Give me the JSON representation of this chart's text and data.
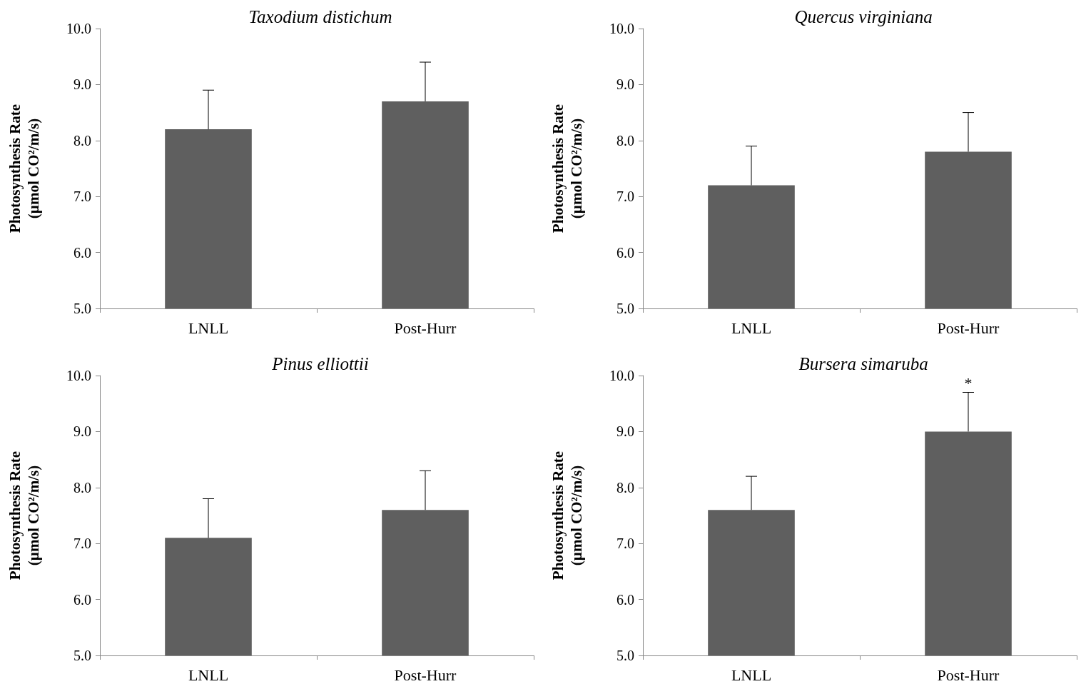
{
  "chart_data": [
    {
      "type": "bar",
      "title": "Taxodium distichum",
      "ylabel": "Photosynthesis Rate\n(µmol CO²/m/s)",
      "categories": [
        "LNLL",
        "Post-Hurr"
      ],
      "values": [
        8.2,
        8.7
      ],
      "errors": [
        [
          8.2,
          8.9
        ],
        [
          8.7,
          9.4
        ]
      ],
      "color": "#5f5f5f",
      "ylim": [
        5,
        10
      ],
      "yticks": [
        {
          "value": 5,
          "label": "5.0"
        },
        {
          "value": 6,
          "label": "6.0"
        },
        {
          "value": 7,
          "label": "7.0"
        },
        {
          "value": 8,
          "label": "8.0"
        },
        {
          "value": 9,
          "label": "9.0"
        },
        {
          "value": 10,
          "label": "10.0"
        }
      ],
      "grid": false
    },
    {
      "type": "bar",
      "title": "Quercus virginiana",
      "ylabel": "Photosynthesis Rate\n(µmol CO²/m/s)",
      "categories": [
        "LNLL",
        "Post-Hurr"
      ],
      "values": [
        7.2,
        7.8
      ],
      "errors": [
        [
          7.2,
          7.9
        ],
        [
          7.8,
          8.5
        ]
      ],
      "color": "#5f5f5f",
      "ylim": [
        5,
        10
      ],
      "yticks": [
        {
          "value": 5,
          "label": "5.0"
        },
        {
          "value": 6,
          "label": "6.0"
        },
        {
          "value": 7,
          "label": "7.0"
        },
        {
          "value": 8,
          "label": "8.0"
        },
        {
          "value": 9,
          "label": "9.0"
        },
        {
          "value": 10,
          "label": "10.0"
        }
      ],
      "grid": false
    },
    {
      "type": "bar",
      "title": "Pinus elliottii",
      "ylabel": "Photosynthesis Rate\n(µmol CO²/m/s)",
      "categories": [
        "LNLL",
        "Post-Hurr"
      ],
      "values": [
        7.1,
        7.6
      ],
      "errors": [
        [
          7.1,
          7.8
        ],
        [
          7.6,
          8.3
        ]
      ],
      "color": "#5f5f5f",
      "ylim": [
        5,
        10
      ],
      "yticks": [
        {
          "value": 5,
          "label": "5.0"
        },
        {
          "value": 6,
          "label": "6.0"
        },
        {
          "value": 7,
          "label": "7.0"
        },
        {
          "value": 8,
          "label": "8.0"
        },
        {
          "value": 9,
          "label": "9.0"
        },
        {
          "value": 10,
          "label": "10.0"
        }
      ],
      "grid": false
    },
    {
      "type": "bar",
      "title": "Bursera simaruba",
      "ylabel": "Photosynthesis Rate\n(µmol CO²/m/s)",
      "categories": [
        "LNLL",
        "Post-Hurr"
      ],
      "values": [
        7.6,
        9.0
      ],
      "errors": [
        [
          7.6,
          8.2
        ],
        [
          9.0,
          9.7
        ]
      ],
      "color": "#5f5f5f",
      "ylim": [
        5,
        10
      ],
      "yticks": [
        {
          "value": 5,
          "label": "5.0"
        },
        {
          "value": 6,
          "label": "6.0"
        },
        {
          "value": 7,
          "label": "7.0"
        },
        {
          "value": 8,
          "label": "8.0"
        },
        {
          "value": 9,
          "label": "9.0"
        },
        {
          "value": 10,
          "label": "10.0"
        }
      ],
      "grid": false,
      "annotations": [
        {
          "text": "*",
          "x": "Post-Hurr",
          "y": 9.7
        }
      ]
    }
  ]
}
